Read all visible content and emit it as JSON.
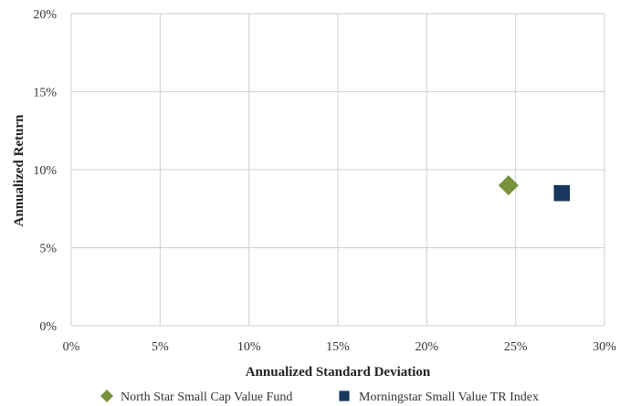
{
  "chart_data": {
    "type": "scatter",
    "title": "",
    "xlabel": "Annualized Standard Deviation",
    "ylabel": "Annualized Return",
    "xlim": [
      0,
      30
    ],
    "ylim": [
      0,
      20
    ],
    "x_ticks": [
      "0%",
      "5%",
      "10%",
      "15%",
      "20%",
      "25%",
      "30%"
    ],
    "y_ticks": [
      "0%",
      "5%",
      "10%",
      "15%",
      "20%"
    ],
    "x_tick_values": [
      0,
      5,
      10,
      15,
      20,
      25,
      30
    ],
    "y_tick_values": [
      0,
      5,
      10,
      15,
      20
    ],
    "grid": true,
    "legend_position": "bottom",
    "series": [
      {
        "name": "North Star Small Cap Value Fund",
        "marker": "diamond",
        "color": "#77923b",
        "x": [
          24.6
        ],
        "y": [
          9.0
        ]
      },
      {
        "name": "Morningstar Small Value TR Index",
        "marker": "square",
        "color": "#17375e",
        "x": [
          27.6
        ],
        "y": [
          8.5
        ]
      }
    ]
  }
}
